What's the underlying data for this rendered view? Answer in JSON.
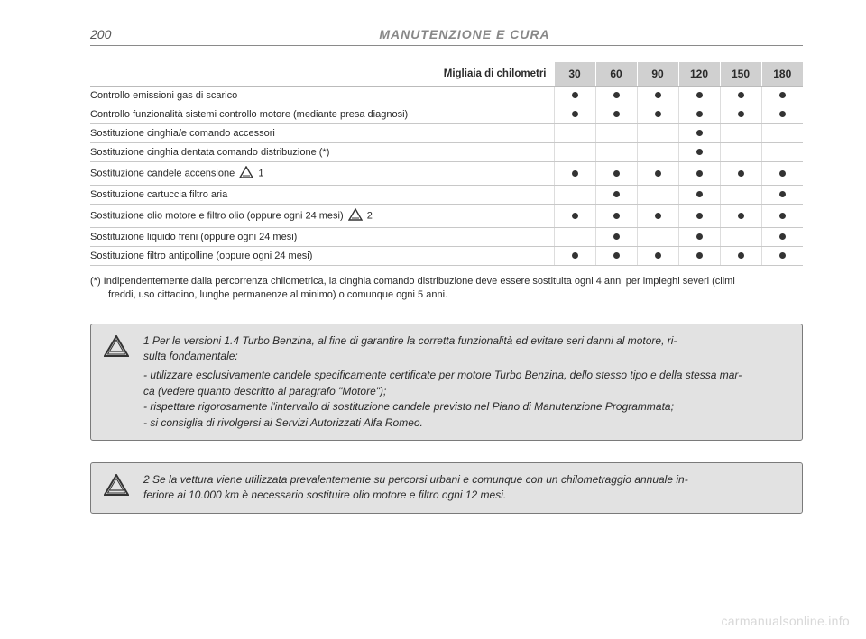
{
  "page_number": "200",
  "section_title": "MANUTENZIONE E CURA",
  "table": {
    "header_label": "Migliaia di chilometri",
    "header_bg": "#d0d0d0",
    "columns": [
      "30",
      "60",
      "90",
      "120",
      "150",
      "180"
    ],
    "row_border_color": "#c8c8c8",
    "dot_color": "#333333",
    "rows": [
      {
        "label": "Controllo emissioni gas di scarico",
        "marks": [
          1,
          1,
          1,
          1,
          1,
          1
        ],
        "icon": null
      },
      {
        "label": "Controllo funzionalità sistemi controllo motore (mediante presa diagnosi)",
        "marks": [
          1,
          1,
          1,
          1,
          1,
          1
        ],
        "icon": null
      },
      {
        "label": "Sostituzione cinghia/e comando accessori",
        "marks": [
          0,
          0,
          0,
          1,
          0,
          0
        ],
        "icon": null
      },
      {
        "label": "Sostituzione cinghia dentata comando distribuzione (*)",
        "marks": [
          0,
          0,
          0,
          1,
          0,
          0
        ],
        "icon": null
      },
      {
        "label": "Sostituzione candele accensione",
        "marks": [
          1,
          1,
          1,
          1,
          1,
          1
        ],
        "icon": "1"
      },
      {
        "label": "Sostituzione cartuccia filtro aria",
        "marks": [
          0,
          1,
          0,
          1,
          0,
          1
        ],
        "icon": null
      },
      {
        "label": "Sostituzione olio motore e filtro olio (oppure ogni 24 mesi)",
        "marks": [
          1,
          1,
          1,
          1,
          1,
          1
        ],
        "icon": "2"
      },
      {
        "label": "Sostituzione liquido freni (oppure ogni 24 mesi)",
        "marks": [
          0,
          1,
          0,
          1,
          0,
          1
        ],
        "icon": null
      },
      {
        "label": "Sostituzione filtro antipolline (oppure ogni 24 mesi)",
        "marks": [
          1,
          1,
          1,
          1,
          1,
          1
        ],
        "icon": null
      }
    ]
  },
  "footnote": {
    "prefix": "(*) ",
    "line1": "Indipendentemente dalla percorrenza chilometrica, la cinghia comando distribuzione deve essere sostituita ogni 4 anni per impieghi severi (climi",
    "line2": "freddi, uso cittadino, lunghe permanenze al minimo) o comunque ogni 5 anni."
  },
  "warning1": {
    "lead": "1 Per le versioni 1.4 Turbo Benzina, al fine di garantire la corretta funzionalità ed evitare seri danni al motore, ri-",
    "lead2": "sulta fondamentale:",
    "items": [
      "- utilizzare esclusivamente candele specificamente certificate per motore Turbo Benzina, dello stesso tipo e della stessa mar-",
      "  ca (vedere quanto descritto al paragrafo \"Motore\");",
      "- rispettare rigorosamente l'intervallo di sostituzione candele previsto nel Piano di Manutenzione Programmata;",
      "- si consiglia di rivolgersi ai Servizi Autorizzati Alfa Romeo."
    ],
    "bg": "#e2e2e2",
    "border": "#7a7a7a"
  },
  "warning2": {
    "lead": "2 Se la vettura viene utilizzata prevalentemente su percorsi urbani e comunque con un chilometraggio annuale in-",
    "lead2": "feriore ai 10.000 km è necessario sostituire olio motore e filtro ogni 12 mesi.",
    "bg": "#e2e2e2",
    "border": "#7a7a7a"
  },
  "watermark": "carmanualsonline.info",
  "icons": {
    "triangle_stroke": "#333333",
    "triangle_fill": "#ffffff"
  }
}
